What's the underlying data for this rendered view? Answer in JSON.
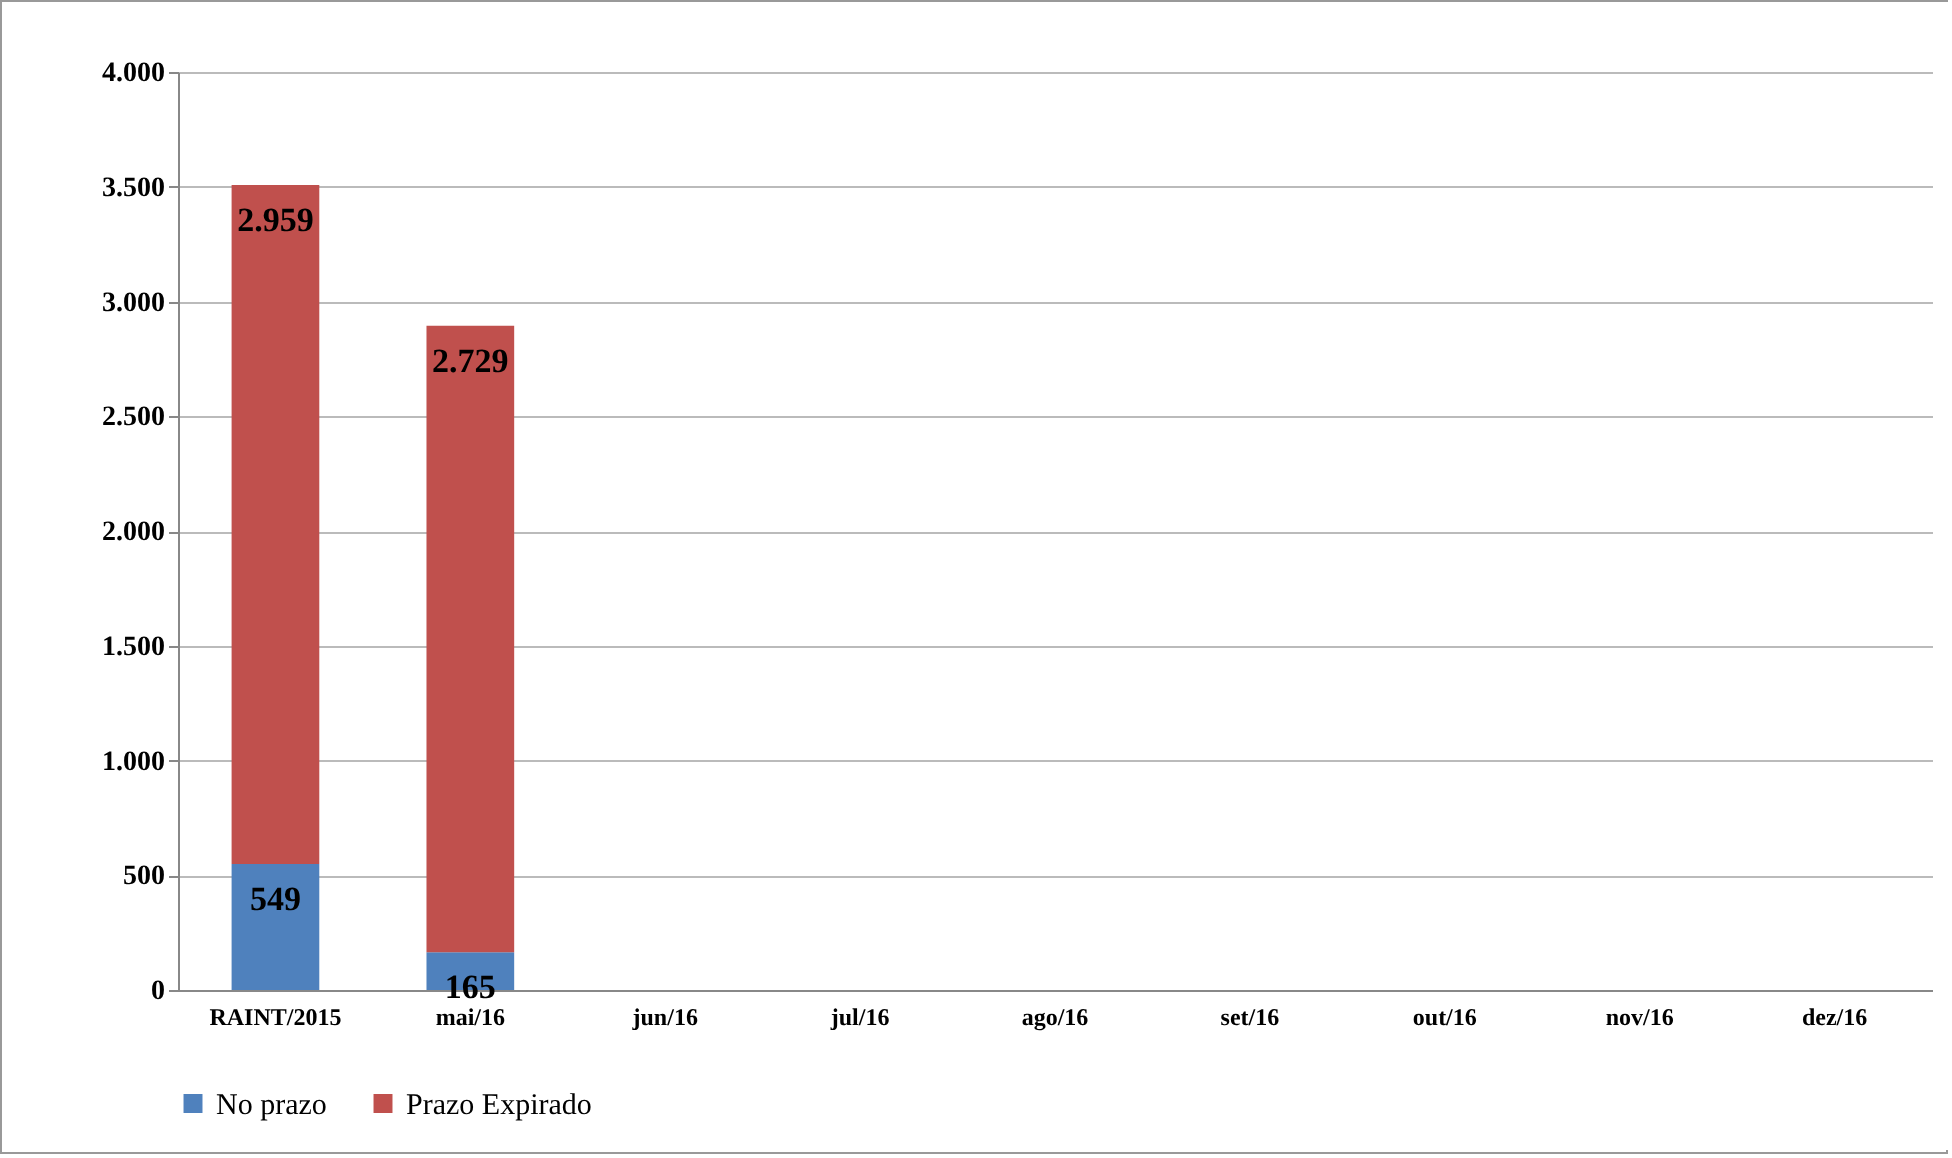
{
  "chart_data": {
    "type": "bar",
    "stacked": true,
    "categories": [
      "RAINT/2015",
      "mai/16",
      "jun/16",
      "jul/16",
      "ago/16",
      "set/16",
      "out/16",
      "nov/16",
      "dez/16"
    ],
    "series": [
      {
        "name": "No prazo",
        "color": "#4f81bd",
        "values": [
          549,
          165,
          null,
          null,
          null,
          null,
          null,
          null,
          null
        ],
        "value_labels": [
          "549",
          "165",
          null,
          null,
          null,
          null,
          null,
          null,
          null
        ]
      },
      {
        "name": "Prazo Expirado",
        "color": "#c0504d",
        "values": [
          2959,
          2729,
          null,
          null,
          null,
          null,
          null,
          null,
          null
        ],
        "value_labels": [
          "2.959",
          "2.729",
          null,
          null,
          null,
          null,
          null,
          null,
          null
        ]
      }
    ],
    "ylim": [
      0,
      4000
    ],
    "yticks": [
      0,
      500,
      {
        "value": 1000,
        "label": "1.000"
      },
      {
        "value": 1500,
        "label": "1.500"
      },
      {
        "value": 2000,
        "label": "2.000"
      },
      {
        "value": 2500,
        "label": "2.500"
      },
      {
        "value": 3000,
        "label": "3.000"
      },
      {
        "value": 3500,
        "label": "3.500"
      },
      {
        "value": 4000,
        "label": "4.000"
      }
    ],
    "grid": "y",
    "legend": "bottom"
  }
}
